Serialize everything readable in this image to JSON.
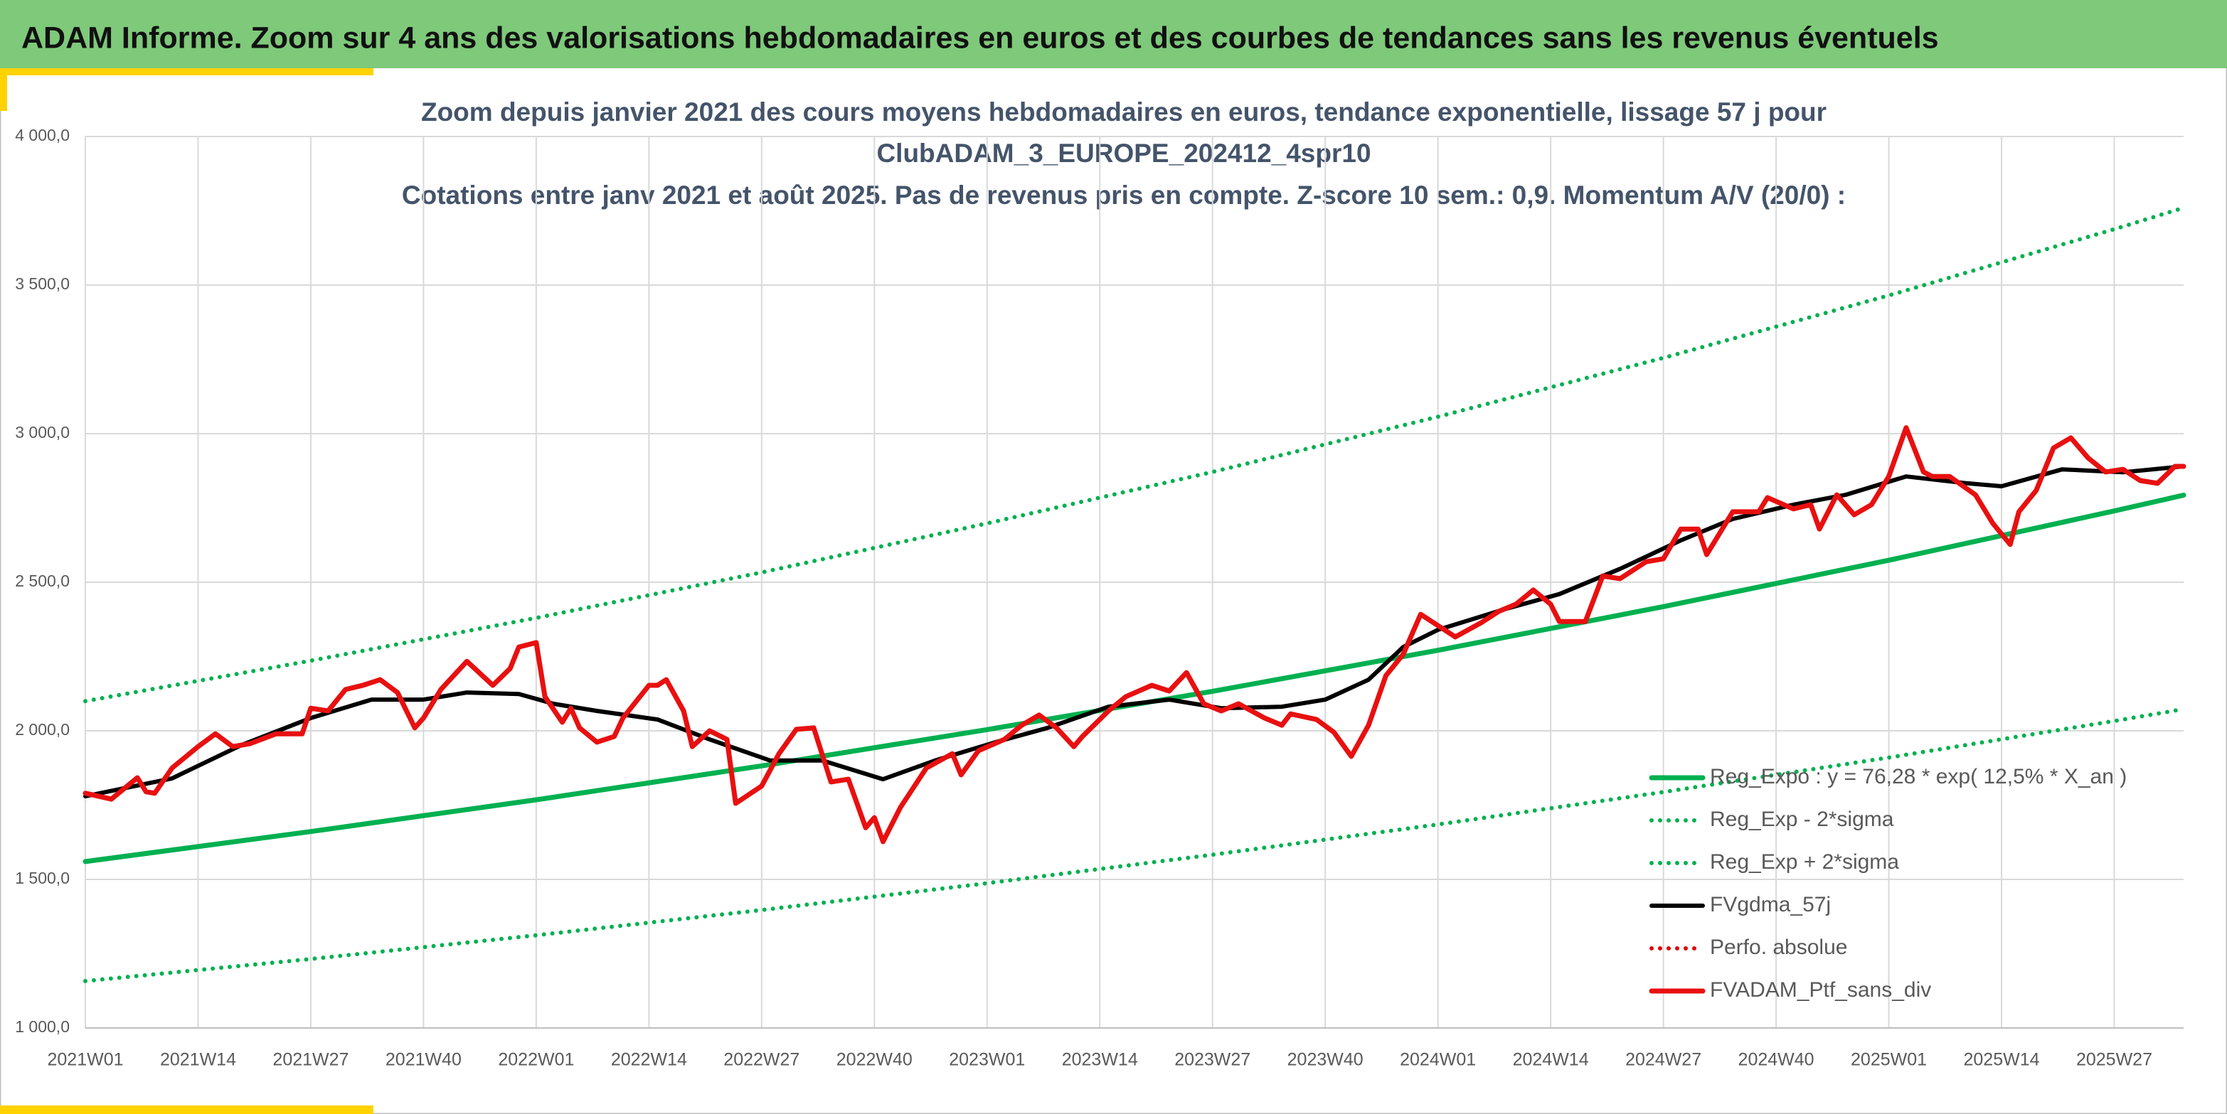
{
  "header": {
    "title": "ADAM Informe. Zoom sur 4 ans des valorisations hebdomadaires en euros et des courbes de tendances sans les revenus éventuels"
  },
  "chart_data": {
    "type": "line",
    "title": [
      "Zoom depuis janvier 2021 des cours moyens hebdomadaires en euros, tendance exponentielle, lissage 57 j pour",
      "ClubADAM_3_EUROPE_202412_4spr10",
      "Cotations entre janv 2021 et août 2025. Pas de revenus pris en compte. Z-score 10 sem.: 0,9. Momentum A/V (20/0) :"
    ],
    "xlim": [
      0,
      242
    ],
    "xticks": [
      {
        "value": 0,
        "label": "2021W01"
      },
      {
        "value": 13,
        "label": "2021W14"
      },
      {
        "value": 26,
        "label": "2021W27"
      },
      {
        "value": 39,
        "label": "2021W40"
      },
      {
        "value": 52,
        "label": "2022W01"
      },
      {
        "value": 65,
        "label": "2022W14"
      },
      {
        "value": 78,
        "label": "2022W27"
      },
      {
        "value": 91,
        "label": "2022W40"
      },
      {
        "value": 104,
        "label": "2023W01"
      },
      {
        "value": 117,
        "label": "2023W14"
      },
      {
        "value": 130,
        "label": "2023W27"
      },
      {
        "value": 143,
        "label": "2023W40"
      },
      {
        "value": 156,
        "label": "2024W01"
      },
      {
        "value": 169,
        "label": "2024W14"
      },
      {
        "value": 182,
        "label": "2024W27"
      },
      {
        "value": 195,
        "label": "2024W40"
      },
      {
        "value": 208,
        "label": "2025W01"
      },
      {
        "value": 221,
        "label": "2025W14"
      },
      {
        "value": 234,
        "label": "2025W27"
      }
    ],
    "ylim": [
      1000,
      4000
    ],
    "yticks": [
      {
        "value": 1000,
        "label": "1 000,0"
      },
      {
        "value": 1500,
        "label": "1 500,0"
      },
      {
        "value": 2000,
        "label": "2 000,0"
      },
      {
        "value": 2500,
        "label": "2 500,0"
      },
      {
        "value": 3000,
        "label": "3 000,0"
      },
      {
        "value": 3500,
        "label": "3 500,0"
      },
      {
        "value": 4000,
        "label": "4 000,0"
      }
    ],
    "grid": true,
    "series": [
      {
        "name": "Reg_Expo : y = 76,28 * exp( 12,5% *  X_an )",
        "color": "#00b050",
        "line_style": "solid",
        "x": [
          0,
          26,
          52,
          78,
          104,
          130,
          156,
          182,
          208,
          234,
          242
        ],
        "values": [
          1560,
          1661,
          1768,
          1882,
          2004,
          2133,
          2271,
          2418,
          2574,
          2740,
          2793
        ]
      },
      {
        "name": "Reg_Exp - 2*sigma",
        "color": "#00b050",
        "line_style": "dotted",
        "x": [
          0,
          26,
          52,
          78,
          104,
          130,
          156,
          182,
          208,
          234,
          242
        ],
        "values": [
          1158,
          1232,
          1312,
          1397,
          1487,
          1583,
          1685,
          1794,
          1910,
          2033,
          2073
        ]
      },
      {
        "name": "Reg_Exp + 2*sigma",
        "color": "#00b050",
        "line_style": "dotted",
        "x": [
          0,
          26,
          52,
          78,
          104,
          130,
          156,
          182,
          208,
          234,
          242
        ],
        "values": [
          2100,
          2236,
          2380,
          2533,
          2698,
          2871,
          3057,
          3255,
          3465,
          3688,
          3760
        ]
      },
      {
        "name": "FVgdma_57j",
        "color": "#000000",
        "line_style": "solid",
        "x": [
          0,
          10,
          18,
          26,
          33,
          39,
          44,
          50,
          54,
          59,
          66,
          72,
          79,
          85,
          92,
          98,
          105,
          111,
          118,
          125,
          131,
          138,
          143,
          148,
          152,
          156,
          164,
          170,
          177,
          184,
          190,
          197,
          203,
          210,
          217,
          221,
          228,
          235,
          242
        ],
        "values": [
          1780,
          1840,
          1952,
          2043,
          2105,
          2105,
          2129,
          2124,
          2091,
          2067,
          2038,
          1971,
          1900,
          1900,
          1837,
          1900,
          1962,
          2010,
          2081,
          2105,
          2076,
          2081,
          2105,
          2172,
          2282,
          2340,
          2412,
          2460,
          2545,
          2641,
          2713,
          2761,
          2794,
          2856,
          2833,
          2823,
          2880,
          2870,
          2890
        ]
      },
      {
        "name": "Perfo. absolue",
        "color": "#e00000",
        "line_style": "dotted",
        "x": [],
        "values": []
      },
      {
        "name": "FVADAM_Ptf_sans_div",
        "color": "#e81010",
        "line_style": "solid",
        "x": [
          0,
          3,
          6,
          7,
          8,
          10,
          13,
          15,
          17,
          19,
          22,
          25,
          26,
          28,
          30,
          32,
          34,
          36,
          38,
          39,
          41,
          44,
          47,
          49,
          50,
          52,
          53,
          55,
          56,
          57,
          59,
          61,
          62,
          65,
          66,
          67,
          69,
          70,
          72,
          74,
          75,
          78,
          80,
          82,
          84,
          86,
          88,
          90,
          91,
          92,
          94,
          97,
          100,
          101,
          103,
          106,
          108,
          110,
          112,
          114,
          115,
          118,
          120,
          123,
          125,
          127,
          129,
          131,
          133,
          136,
          138,
          139,
          142,
          144,
          146,
          148,
          150,
          152,
          154,
          156,
          158,
          161,
          163,
          165,
          167,
          169,
          170,
          173,
          175,
          177,
          180,
          182,
          184,
          186,
          187,
          190,
          193,
          194,
          197,
          199,
          200,
          202,
          204,
          206,
          208,
          210,
          212,
          213,
          215,
          218,
          220,
          222,
          223,
          225,
          227,
          229,
          231,
          233,
          235,
          237,
          239,
          241,
          242
        ],
        "values": [
          1790,
          1770,
          1842,
          1795,
          1790,
          1875,
          1947,
          1990,
          1947,
          1957,
          1990,
          1990,
          2076,
          2067,
          2139,
          2153,
          2172,
          2129,
          2010,
          2043,
          2139,
          2234,
          2153,
          2210,
          2282,
          2297,
          2115,
          2029,
          2076,
          2010,
          1962,
          1981,
          2043,
          2153,
          2153,
          2172,
          2067,
          1947,
          2000,
          1971,
          1756,
          1814,
          1923,
          2005,
          2010,
          1828,
          1837,
          1674,
          1708,
          1627,
          1742,
          1875,
          1923,
          1852,
          1933,
          1971,
          2019,
          2053,
          2010,
          1947,
          1981,
          2067,
          2115,
          2153,
          2134,
          2196,
          2091,
          2067,
          2091,
          2043,
          2019,
          2057,
          2038,
          1995,
          1914,
          2019,
          2186,
          2258,
          2392,
          2354,
          2316,
          2364,
          2402,
          2426,
          2474,
          2426,
          2368,
          2368,
          2521,
          2512,
          2569,
          2579,
          2679,
          2679,
          2593,
          2737,
          2737,
          2785,
          2747,
          2761,
          2679,
          2794,
          2727,
          2761,
          2856,
          3020,
          2871,
          2856,
          2856,
          2794,
          2698,
          2627,
          2737,
          2809,
          2952,
          2986,
          2918,
          2871,
          2880,
          2842,
          2833,
          2890,
          2890
        ]
      }
    ]
  }
}
